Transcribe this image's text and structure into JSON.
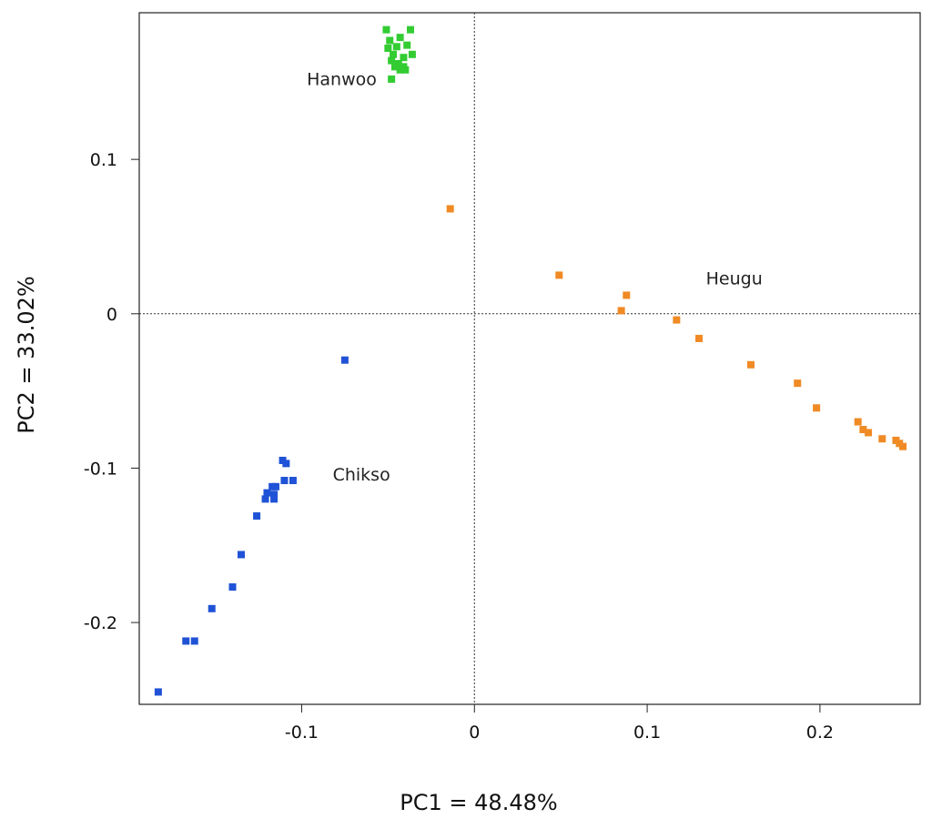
{
  "chart_data": {
    "type": "scatter",
    "title": "",
    "xlabel": "PC1 =  48.48%",
    "ylabel": "PC2 = 33.02%",
    "xlim": [
      -0.194,
      0.258
    ],
    "ylim": [
      -0.253,
      0.195
    ],
    "x_ticks": [
      -0.1,
      0,
      0.1,
      0.2
    ],
    "x_tick_labels": [
      "-0.1",
      "0",
      "0.1",
      "0.2"
    ],
    "y_ticks": [
      -0.2,
      -0.1,
      0,
      0.1
    ],
    "y_tick_labels": [
      "-0.2",
      "-0.1",
      "0",
      "0.1"
    ],
    "grid": false,
    "reference_lines": [
      {
        "orientation": "vertical",
        "x": 0,
        "style": "dotted"
      },
      {
        "orientation": "horizontal",
        "y": 0,
        "style": "dotted"
      }
    ],
    "series": [
      {
        "name": "Hanwoo",
        "color": "#33cc33",
        "label_pos": {
          "x": -0.097,
          "y": 0.148
        },
        "points": [
          [
            -0.051,
            0.184
          ],
          [
            -0.037,
            0.184
          ],
          [
            -0.043,
            0.179
          ],
          [
            -0.049,
            0.177
          ],
          [
            -0.05,
            0.172
          ],
          [
            -0.045,
            0.173
          ],
          [
            -0.039,
            0.174
          ],
          [
            -0.047,
            0.168
          ],
          [
            -0.041,
            0.166
          ],
          [
            -0.036,
            0.168
          ],
          [
            -0.048,
            0.164
          ],
          [
            -0.044,
            0.162
          ],
          [
            -0.041,
            0.16
          ],
          [
            -0.043,
            0.158
          ],
          [
            -0.046,
            0.16
          ],
          [
            -0.04,
            0.158
          ],
          [
            -0.048,
            0.152
          ]
        ]
      },
      {
        "name": "Heugu",
        "color": "#f08a24",
        "label_pos": {
          "x": 0.134,
          "y": 0.019
        },
        "points": [
          [
            -0.014,
            0.068
          ],
          [
            0.049,
            0.025
          ],
          [
            0.088,
            0.012
          ],
          [
            0.085,
            0.002
          ],
          [
            0.117,
            -0.004
          ],
          [
            0.13,
            -0.016
          ],
          [
            0.16,
            -0.033
          ],
          [
            0.187,
            -0.045
          ],
          [
            0.198,
            -0.061
          ],
          [
            0.222,
            -0.07
          ],
          [
            0.225,
            -0.075
          ],
          [
            0.228,
            -0.077
          ],
          [
            0.236,
            -0.081
          ],
          [
            0.244,
            -0.082
          ],
          [
            0.246,
            -0.084
          ],
          [
            0.248,
            -0.086
          ]
        ]
      },
      {
        "name": "Chikso",
        "color": "#1f52d6",
        "label_pos": {
          "x": -0.082,
          "y": -0.108
        },
        "points": [
          [
            -0.075,
            -0.03
          ],
          [
            -0.111,
            -0.095
          ],
          [
            -0.109,
            -0.097
          ],
          [
            -0.11,
            -0.108
          ],
          [
            -0.105,
            -0.108
          ],
          [
            -0.117,
            -0.112
          ],
          [
            -0.115,
            -0.112
          ],
          [
            -0.12,
            -0.116
          ],
          [
            -0.116,
            -0.117
          ],
          [
            -0.121,
            -0.12
          ],
          [
            -0.116,
            -0.12
          ],
          [
            -0.126,
            -0.131
          ],
          [
            -0.135,
            -0.156
          ],
          [
            -0.14,
            -0.177
          ],
          [
            -0.152,
            -0.191
          ],
          [
            -0.167,
            -0.212
          ],
          [
            -0.162,
            -0.212
          ],
          [
            -0.183,
            -0.245
          ]
        ]
      }
    ]
  }
}
